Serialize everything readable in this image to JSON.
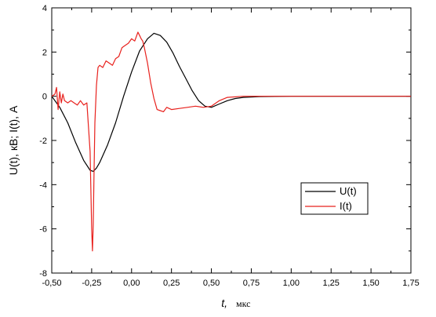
{
  "chart_data": {
    "type": "line",
    "xlabel": "t,",
    "xunit": "мкс",
    "ylabel": "U(t), кВ; I(t), А",
    "xlim": [
      -0.5,
      1.75
    ],
    "ylim": [
      -8,
      4
    ],
    "xticks": [
      -0.5,
      -0.25,
      0.0,
      0.25,
      0.5,
      0.75,
      1.0,
      1.25,
      1.5,
      1.75
    ],
    "xtick_labels": [
      "-0,50",
      "-0,25",
      "0,00",
      "0,25",
      "0,50",
      "0,75",
      "1,00",
      "1,25",
      "1,50",
      "1,75"
    ],
    "yticks": [
      -8,
      -6,
      -4,
      -2,
      0,
      2,
      4
    ],
    "ytick_labels": [
      "-8",
      "-6",
      "-4",
      "-2",
      "0",
      "2",
      "4"
    ],
    "grid": false,
    "legend_position": "lower-right",
    "legend": [
      "U(t)",
      "I(t)"
    ],
    "colors": {
      "U": "#000000",
      "I": "#e8211d"
    },
    "series": [
      {
        "name": "U(t)",
        "color": "#000000",
        "x": [
          -0.5,
          -0.45,
          -0.4,
          -0.35,
          -0.3,
          -0.26,
          -0.24,
          -0.22,
          -0.2,
          -0.15,
          -0.1,
          -0.05,
          0.0,
          0.05,
          0.1,
          0.14,
          0.18,
          0.22,
          0.26,
          0.3,
          0.34,
          0.38,
          0.42,
          0.46,
          0.5,
          0.55,
          0.6,
          0.65,
          0.7,
          0.8,
          0.9,
          1.0,
          1.25,
          1.5,
          1.75
        ],
        "y": [
          0.0,
          -0.5,
          -1.2,
          -2.1,
          -2.9,
          -3.35,
          -3.4,
          -3.25,
          -3.0,
          -2.2,
          -1.2,
          0.0,
          1.1,
          2.05,
          2.6,
          2.85,
          2.75,
          2.45,
          1.95,
          1.35,
          0.8,
          0.25,
          -0.2,
          -0.45,
          -0.5,
          -0.35,
          -0.2,
          -0.1,
          -0.05,
          -0.02,
          -0.01,
          0.0,
          0.0,
          0.0,
          0.0
        ]
      },
      {
        "name": "I(t)",
        "color": "#e8211d",
        "x": [
          -0.5,
          -0.48,
          -0.47,
          -0.46,
          -0.45,
          -0.44,
          -0.43,
          -0.42,
          -0.4,
          -0.38,
          -0.36,
          -0.34,
          -0.32,
          -0.3,
          -0.28,
          -0.26,
          -0.25,
          -0.245,
          -0.24,
          -0.235,
          -0.23,
          -0.22,
          -0.21,
          -0.2,
          -0.18,
          -0.16,
          -0.14,
          -0.12,
          -0.1,
          -0.08,
          -0.06,
          -0.04,
          -0.02,
          0.0,
          0.02,
          0.04,
          0.05,
          0.06,
          0.07,
          0.08,
          0.1,
          0.12,
          0.14,
          0.16,
          0.18,
          0.2,
          0.22,
          0.25,
          0.3,
          0.35,
          0.4,
          0.45,
          0.5,
          0.55,
          0.6,
          0.7,
          0.8,
          1.0,
          1.25,
          1.5,
          1.75
        ],
        "y": [
          0.0,
          0.1,
          0.4,
          -0.6,
          0.2,
          -0.3,
          0.1,
          -0.2,
          -0.3,
          -0.2,
          -0.3,
          -0.4,
          -0.2,
          -0.4,
          -0.3,
          -2.5,
          -6.0,
          -7.0,
          -5.8,
          -3.5,
          -1.2,
          0.5,
          1.3,
          1.4,
          1.3,
          1.6,
          1.5,
          1.4,
          1.7,
          1.8,
          2.2,
          2.3,
          2.4,
          2.6,
          2.5,
          2.9,
          2.75,
          2.6,
          2.5,
          2.2,
          1.5,
          0.6,
          -0.1,
          -0.6,
          -0.65,
          -0.7,
          -0.5,
          -0.6,
          -0.55,
          -0.5,
          -0.45,
          -0.5,
          -0.45,
          -0.2,
          -0.05,
          0.0,
          0.0,
          0.0,
          0.0,
          0.0,
          0.0
        ]
      }
    ]
  }
}
